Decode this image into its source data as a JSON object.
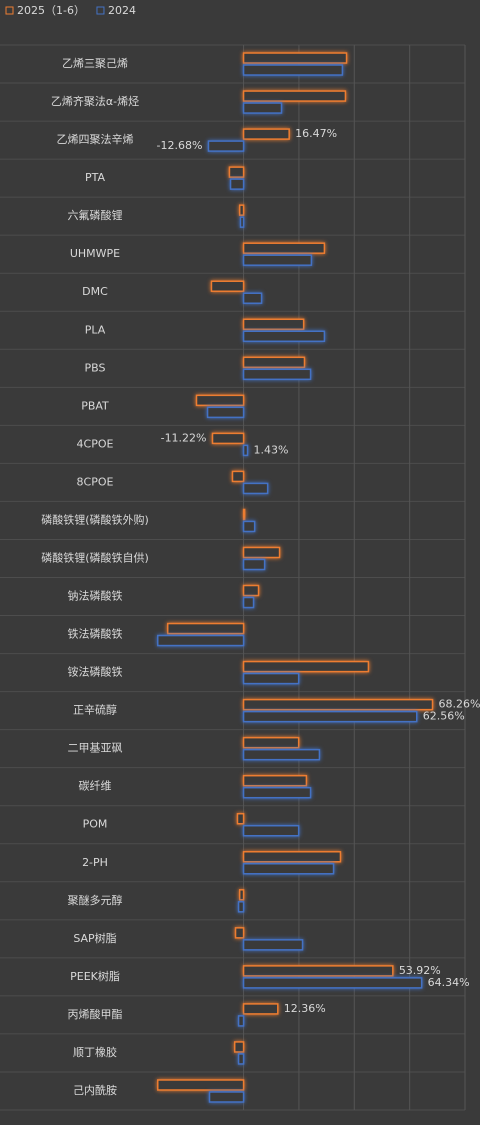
{
  "chart_data": {
    "type": "hbar",
    "categories": [
      "乙烯三聚己烯",
      "乙烯齐聚法α-烯烃",
      "乙烯四聚法辛烯",
      "PTA",
      "六氟磷酸锂",
      "UHMWPE",
      "DMC",
      "PLA",
      "PBS",
      "PBAT",
      "4CPOE",
      "8CPOE",
      "磷酸铁锂(磷酸铁外购)",
      "磷酸铁锂(磷酸铁自供)",
      "钠法磷酸铁",
      "铁法磷酸铁",
      "铵法磷酸铁",
      "正辛硫醇",
      "二甲基亚砜",
      "碳纤维",
      "POM",
      "2-PH",
      "聚醚多元醇",
      "SAP树脂",
      "PEEK树脂",
      "丙烯酸甲酯",
      "顺丁橡胶",
      "己内酰胺"
    ],
    "series": [
      {
        "name": "2025（1-6）",
        "color": "#ed7d31",
        "values": [
          37.2,
          36.8,
          16.47,
          -5.1,
          -1.4,
          29.2,
          -11.6,
          21.7,
          22.0,
          -17.0,
          -11.22,
          -4.0,
          0.4,
          13.0,
          5.4,
          -27.4,
          45.1,
          68.26,
          19.9,
          22.7,
          -2.2,
          35.0,
          -1.4,
          -2.9,
          53.92,
          12.36,
          -3.2,
          -31.0
        ],
        "value_labels": [
          null,
          null,
          "16.47%",
          null,
          null,
          null,
          null,
          null,
          null,
          null,
          "-11.22%",
          null,
          null,
          null,
          null,
          null,
          null,
          "68.26%",
          null,
          null,
          null,
          null,
          null,
          null,
          "53.92%",
          "12.36%",
          null,
          null
        ]
      },
      {
        "name": "2024",
        "color": "#4472c4",
        "values": [
          35.7,
          13.7,
          -12.68,
          -4.7,
          -1.1,
          24.5,
          6.5,
          29.2,
          24.2,
          -13.0,
          1.43,
          8.7,
          4.0,
          7.6,
          3.6,
          -31.0,
          19.9,
          62.56,
          27.4,
          24.2,
          19.9,
          32.5,
          -1.8,
          21.3,
          64.34,
          -1.8,
          -1.8,
          -12.3
        ],
        "value_labels": [
          null,
          null,
          "-12.68%",
          null,
          null,
          null,
          null,
          null,
          null,
          null,
          "1.43%",
          null,
          null,
          null,
          null,
          null,
          null,
          "62.56%",
          null,
          null,
          null,
          null,
          null,
          null,
          "64.34%",
          null,
          null,
          null
        ]
      }
    ],
    "xlim": [
      -88,
      80
    ],
    "xticks": [
      0,
      20,
      40,
      60,
      80
    ],
    "grid": true,
    "legend": "top-left"
  }
}
